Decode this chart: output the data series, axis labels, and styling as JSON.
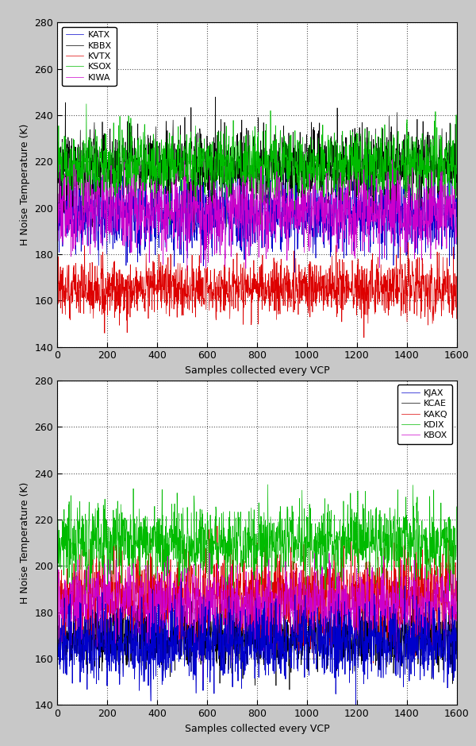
{
  "n_samples": 1600,
  "background_color": "#c8c8c8",
  "plot_bg_color": "#ffffff",
  "ylabel": "H Noise Temperature (K)",
  "xlabel": "Samples collected every VCP",
  "ylim": [
    140,
    280
  ],
  "yticks": [
    140,
    160,
    180,
    200,
    220,
    240,
    260,
    280
  ],
  "xticks": [
    0,
    200,
    400,
    600,
    800,
    1000,
    1200,
    1400,
    1600
  ],
  "plot1": {
    "series": [
      {
        "label": "KATX",
        "color": "#0000cc",
        "mean": 197,
        "std": 8,
        "seed": 101
      },
      {
        "label": "KBBX",
        "color": "#000000",
        "mean": 218,
        "std": 8,
        "seed": 102
      },
      {
        "label": "KVTX",
        "color": "#dd0000",
        "mean": 165,
        "std": 6,
        "seed": 103
      },
      {
        "label": "KSOX",
        "color": "#00bb00",
        "mean": 218,
        "std": 8,
        "seed": 104
      },
      {
        "label": "KIWA",
        "color": "#cc00cc",
        "mean": 198,
        "std": 8,
        "seed": 105
      }
    ],
    "legend_loc": "upper left"
  },
  "plot2": {
    "series": [
      {
        "label": "KJAX",
        "color": "#0000cc",
        "mean": 167,
        "std": 8,
        "seed": 111
      },
      {
        "label": "KCAE",
        "color": "#000000",
        "mean": 170,
        "std": 7,
        "seed": 112
      },
      {
        "label": "KAKQ",
        "color": "#dd0000",
        "mean": 187,
        "std": 9,
        "seed": 113
      },
      {
        "label": "KDIX",
        "color": "#00bb00",
        "mean": 210,
        "std": 8,
        "seed": 114
      },
      {
        "label": "KBOX",
        "color": "#cc00cc",
        "mean": 183,
        "std": 8,
        "seed": 115
      }
    ],
    "legend_loc": "upper right"
  }
}
